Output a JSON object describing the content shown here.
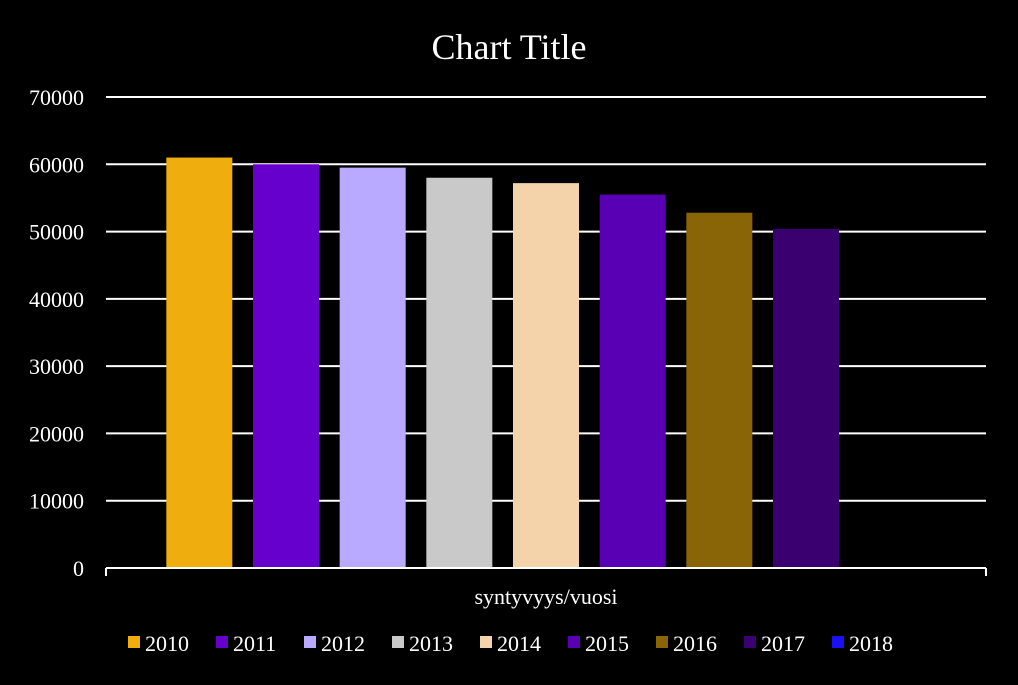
{
  "chart_data": {
    "type": "bar",
    "title": "Chart Title",
    "category_label": "syntyvyys/vuosi",
    "ylim": [
      0,
      70000
    ],
    "yticks": [
      0,
      10000,
      20000,
      30000,
      40000,
      50000,
      60000,
      70000
    ],
    "grid": true,
    "legend_position": "bottom",
    "series": [
      {
        "name": "2010",
        "value": 61000,
        "color": "#EFAE0D"
      },
      {
        "name": "2011",
        "value": 60000,
        "color": "#6600CC"
      },
      {
        "name": "2012",
        "value": 59500,
        "color": "#B9A9FF"
      },
      {
        "name": "2013",
        "value": 58000,
        "color": "#C9C9C9"
      },
      {
        "name": "2014",
        "value": 57200,
        "color": "#F5D3AA"
      },
      {
        "name": "2015",
        "value": 55500,
        "color": "#5A00B4"
      },
      {
        "name": "2016",
        "value": 52800,
        "color": "#8A6508"
      },
      {
        "name": "2017",
        "value": 50400,
        "color": "#3A0070"
      },
      {
        "name": "2018",
        "value": null,
        "color": "#1A10F0"
      }
    ]
  }
}
